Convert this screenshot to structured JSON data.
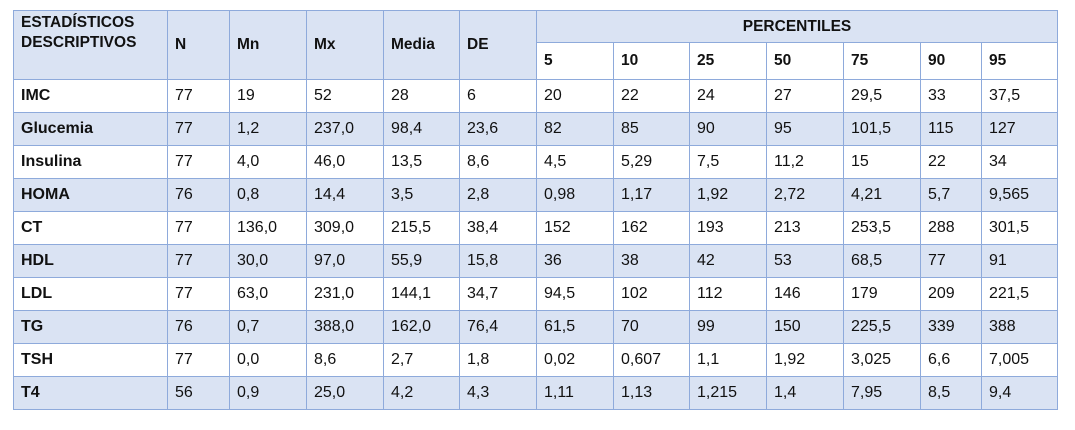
{
  "header": {
    "label": "ESTADÍSTICOS DESCRIPTIVOS",
    "columns": [
      "N",
      "Mn",
      "Mx",
      "Media",
      "DE"
    ],
    "percentiles_group": "PERCENTILES",
    "percentiles": [
      "5",
      "10",
      "25",
      "50",
      "75",
      "90",
      "95"
    ]
  },
  "rows": [
    {
      "label": "IMC",
      "cells": [
        "77",
        "19",
        "52",
        "28",
        "6",
        "20",
        "22",
        "24",
        "27",
        "29,5",
        "33",
        "37,5"
      ]
    },
    {
      "label": "Glucemia",
      "cells": [
        "77",
        "1,2",
        "237,0",
        "98,4",
        "23,6",
        "82",
        "85",
        "90",
        "95",
        "101,5",
        "115",
        "127"
      ]
    },
    {
      "label": "Insulina",
      "cells": [
        "77",
        "4,0",
        "46,0",
        "13,5",
        "8,6",
        "4,5",
        "5,29",
        "7,5",
        "11,2",
        "15",
        "22",
        "34"
      ]
    },
    {
      "label": "HOMA",
      "cells": [
        "76",
        "0,8",
        "14,4",
        "3,5",
        "2,8",
        "0,98",
        "1,17",
        "1,92",
        "2,72",
        "4,21",
        "5,7",
        "9,565"
      ]
    },
    {
      "label": "CT",
      "cells": [
        "77",
        "136,0",
        "309,0",
        "215,5",
        "38,4",
        "152",
        "162",
        "193",
        "213",
        "253,5",
        "288",
        "301,5"
      ]
    },
    {
      "label": "HDL",
      "cells": [
        "77",
        "30,0",
        "97,0",
        "55,9",
        "15,8",
        "36",
        "38",
        "42",
        "53",
        "68,5",
        "77",
        "91"
      ]
    },
    {
      "label": "LDL",
      "cells": [
        "77",
        "63,0",
        "231,0",
        "144,1",
        "34,7",
        "94,5",
        "102",
        "112",
        "146",
        "179",
        "209",
        "221,5"
      ]
    },
    {
      "label": "TG",
      "cells": [
        "76",
        "0,7",
        "388,0",
        "162,0",
        "76,4",
        "61,5",
        "70",
        "99",
        "150",
        "225,5",
        "339",
        "388"
      ]
    },
    {
      "label": "TSH",
      "cells": [
        "77",
        "0,0",
        "8,6",
        "2,7",
        "1,8",
        "0,02",
        "0,607",
        "1,1",
        "1,92",
        "3,025",
        "6,6",
        "7,005"
      ]
    },
    {
      "label": "T4",
      "cells": [
        "56",
        "0,9",
        "25,0",
        "4,2",
        "4,3",
        "1,11",
        "1,13",
        "1,215",
        "1,4",
        "7,95",
        "8,5",
        "9,4"
      ]
    }
  ]
}
